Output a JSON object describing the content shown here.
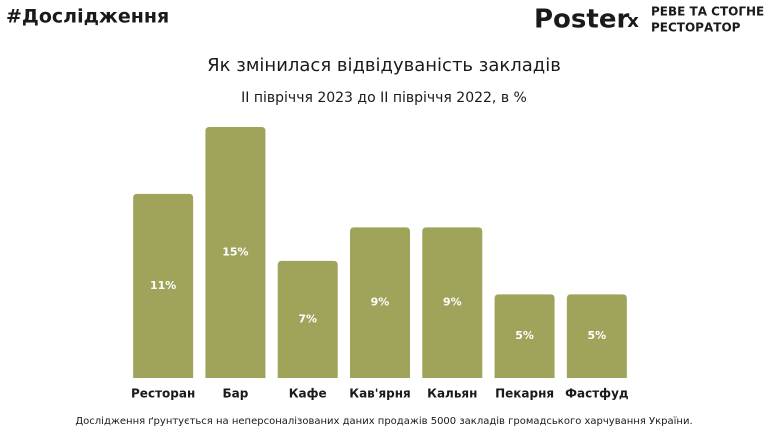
{
  "header": {
    "hashtag": "#Дослідження",
    "logo": "Poster",
    "times": "x",
    "partner_line1": "РЕВЕ ТА СТОГНЕ",
    "partner_line2": "РЕСТОРАТОР"
  },
  "chart_data": {
    "type": "bar",
    "title": "Як змінилася відвідуваність закладів",
    "subtitle": "ІІ півріччя 2023 до ІІ півріччя 2022, в %",
    "categories": [
      "Ресторан",
      "Бар",
      "Кафе",
      "Кав'ярня",
      "Кальян",
      "Пекарня",
      "Фастфуд"
    ],
    "values": [
      11,
      15,
      7,
      9,
      9,
      5,
      5
    ],
    "value_labels": [
      "11%",
      "15%",
      "7%",
      "9%",
      "9%",
      "5%",
      "5%"
    ],
    "color": "#a0a45a",
    "ylim": [
      0,
      15
    ]
  },
  "footnote": "Дослідження ґрунтується на неперсоналізованих даних продажів 5000 закладів громадського харчування України."
}
